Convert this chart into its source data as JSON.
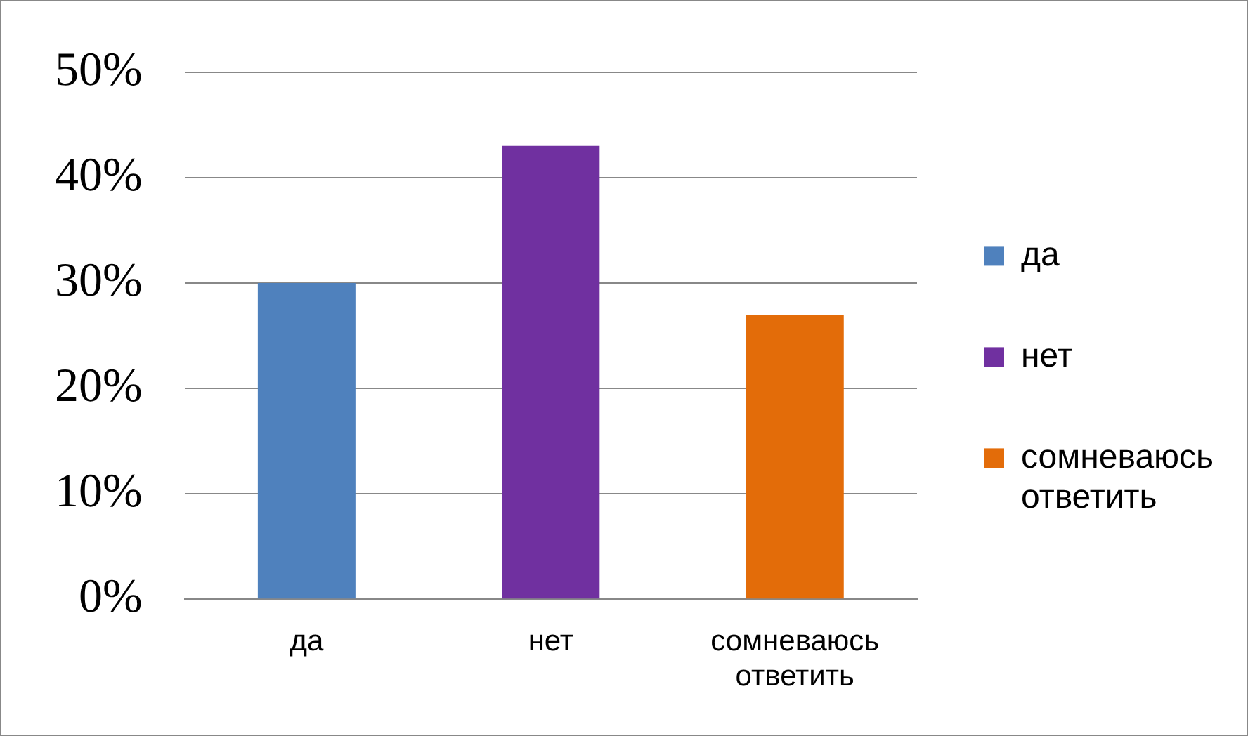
{
  "chart_data": {
    "type": "bar",
    "categories": [
      "да",
      "нет",
      "сомневаюсь ответить"
    ],
    "series": [
      {
        "name": "да",
        "color": "#4f81bd",
        "values": [
          30,
          null,
          null
        ]
      },
      {
        "name": "нет",
        "color": "#7030a0",
        "values": [
          null,
          43,
          null
        ]
      },
      {
        "name": "сомневаюсь ответить",
        "color": "#e36c09",
        "values": [
          null,
          null,
          27
        ]
      }
    ],
    "stacked": true,
    "ylim": [
      0,
      50
    ],
    "yticks": [
      {
        "value": 0,
        "label": "0%"
      },
      {
        "value": 10,
        "label": "10%"
      },
      {
        "value": 20,
        "label": "20%"
      },
      {
        "value": 30,
        "label": "30%"
      },
      {
        "value": 40,
        "label": "40%"
      },
      {
        "value": 50,
        "label": "50%"
      }
    ],
    "grid": "y",
    "legend": "right"
  }
}
